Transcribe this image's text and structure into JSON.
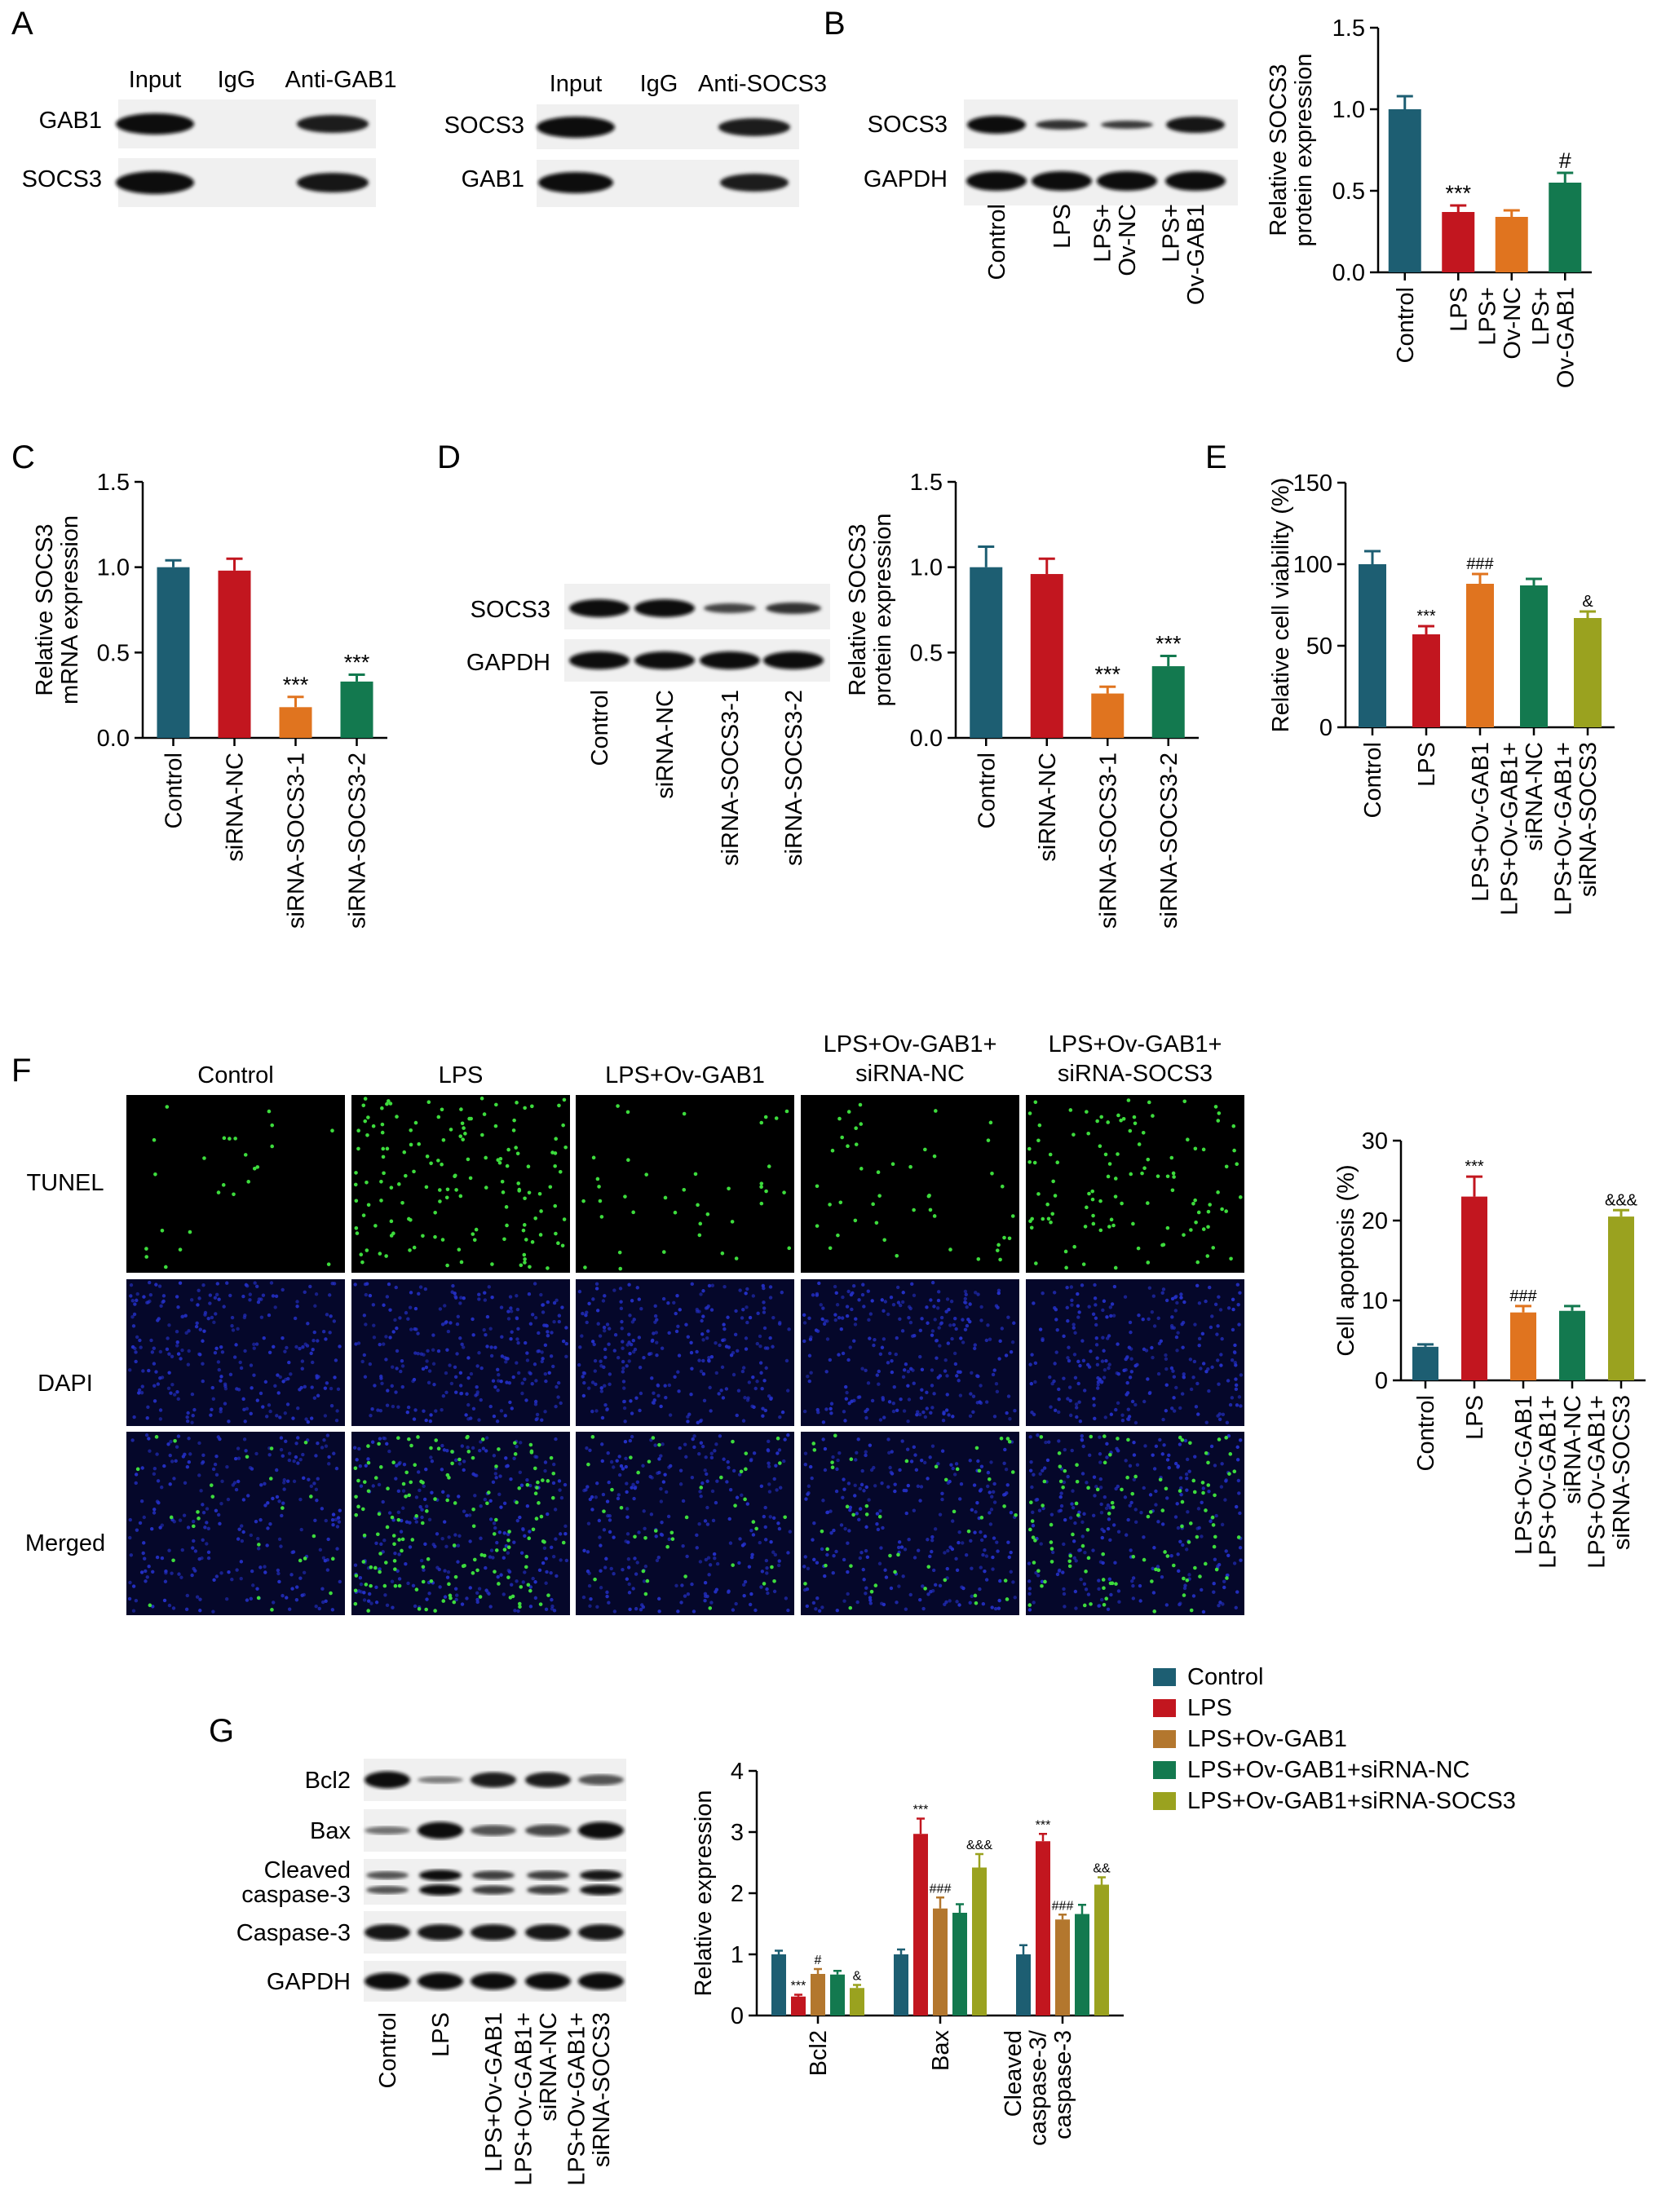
{
  "panels": {
    "A": {
      "letter": "A",
      "blot1": {
        "cols": [
          "Input",
          "IgG",
          "Anti-GAB1"
        ],
        "rows": [
          "GAB1",
          "SOCS3"
        ]
      },
      "blot2": {
        "cols": [
          "Input",
          "IgG",
          "Anti-SOCS3"
        ],
        "rows": [
          "SOCS3",
          "GAB1"
        ]
      }
    },
    "B": {
      "letter": "B",
      "blot_rows": [
        "SOCS3",
        "GAPDH"
      ]
    },
    "C": {
      "letter": "C"
    },
    "D": {
      "letter": "D",
      "blot_rows": [
        "SOCS3",
        "GAPDH"
      ]
    },
    "E": {
      "letter": "E"
    },
    "F": {
      "letter": "F",
      "groups": [
        "Control",
        "LPS",
        "LPS+Ov-GAB1",
        "LPS+Ov-GAB1+\nsiRNA-NC",
        "LPS+Ov-GAB1+\nsiRNA-SOCS3"
      ],
      "rows": [
        "TUNEL",
        "DAPI",
        "Merged"
      ]
    },
    "G": {
      "letter": "G",
      "blot_rows": [
        "Bcl2",
        "Bax",
        "Cleaved\ncaspase-3",
        "Caspase-3",
        "GAPDH"
      ]
    }
  },
  "colors": {
    "teal": "#1d5e72",
    "red": "#c2161f",
    "orange": "#e0741f",
    "green": "#13794f",
    "olive": "#9aa21f",
    "brown": "#b3772e"
  },
  "chart_data": [
    {
      "id": "B",
      "type": "bar",
      "categories": [
        "Control",
        "LPS",
        "LPS+\nOv-NC",
        "LPS+\nOv-GAB1"
      ],
      "values": [
        1.0,
        0.37,
        0.34,
        0.55
      ],
      "errors": [
        0.08,
        0.04,
        0.04,
        0.06
      ],
      "colors": [
        "teal",
        "red",
        "orange",
        "green"
      ],
      "annotations": [
        "",
        "***",
        "",
        "#"
      ],
      "ylabel": "Relative SOCS3\nprotein expression",
      "ylim": [
        0,
        1.5
      ],
      "yticks": [
        0.0,
        0.5,
        1.0,
        1.5
      ]
    },
    {
      "id": "C",
      "type": "bar",
      "categories": [
        "Control",
        "siRNA-NC",
        "siRNA-SOCS3-1",
        "siRNA-SOCS3-2"
      ],
      "values": [
        1.0,
        0.98,
        0.18,
        0.33
      ],
      "errors": [
        0.04,
        0.07,
        0.06,
        0.04
      ],
      "colors": [
        "teal",
        "red",
        "orange",
        "green"
      ],
      "annotations": [
        "",
        "",
        "***",
        "***"
      ],
      "ylabel": "Relative SOCS3\nmRNA expression",
      "ylim": [
        0,
        1.5
      ],
      "yticks": [
        0.0,
        0.5,
        1.0,
        1.5
      ]
    },
    {
      "id": "D",
      "type": "bar",
      "categories": [
        "Control",
        "siRNA-NC",
        "siRNA-SOCS3-1",
        "siRNA-SOCS3-2"
      ],
      "values": [
        1.0,
        0.96,
        0.26,
        0.42
      ],
      "errors": [
        0.12,
        0.09,
        0.04,
        0.06
      ],
      "colors": [
        "teal",
        "red",
        "orange",
        "green"
      ],
      "annotations": [
        "",
        "",
        "***",
        "***"
      ],
      "ylabel": "Relative SOCS3\nprotein expression",
      "ylim": [
        0,
        1.5
      ],
      "yticks": [
        0.0,
        0.5,
        1.0,
        1.5
      ]
    },
    {
      "id": "E",
      "type": "bar",
      "categories": [
        "Control",
        "LPS",
        "LPS+Ov-GAB1",
        "LPS+Ov-GAB1+\nsiRNA-NC",
        "LPS+Ov-GAB1+\nsiRNA-SOCS3"
      ],
      "values": [
        100,
        57,
        88,
        87,
        67
      ],
      "errors": [
        8,
        5,
        6,
        4,
        4
      ],
      "colors": [
        "teal",
        "red",
        "orange",
        "green",
        "olive"
      ],
      "annotations": [
        "",
        "***",
        "###",
        "",
        "&"
      ],
      "ylabel": "Relative cell viability (%)",
      "ylim": [
        0,
        150
      ],
      "yticks": [
        0,
        50,
        100,
        150
      ]
    },
    {
      "id": "F",
      "type": "bar",
      "categories": [
        "Control",
        "LPS",
        "LPS+Ov-GAB1",
        "LPS+Ov-GAB1+\nsiRNA-NC",
        "LPS+Ov-GAB1+\nsiRNA-SOCS3"
      ],
      "values": [
        4.2,
        23.0,
        8.5,
        8.7,
        20.5
      ],
      "errors": [
        0.3,
        2.5,
        0.8,
        0.6,
        0.8
      ],
      "colors": [
        "teal",
        "red",
        "orange",
        "green",
        "olive"
      ],
      "annotations": [
        "",
        "***",
        "###",
        "",
        "&&&"
      ],
      "ylabel": "Cell apoptosis (%)",
      "ylim": [
        0,
        30
      ],
      "yticks": [
        0,
        10,
        20,
        30
      ]
    },
    {
      "id": "G",
      "type": "bar",
      "categories": [
        "Bcl2",
        "Bax",
        "Cleaved\ncaspase-3/\ncaspase-3"
      ],
      "series": [
        {
          "name": "Control",
          "color": "teal",
          "values": [
            1.0,
            1.0,
            1.0
          ],
          "errors": [
            0.06,
            0.08,
            0.15
          ],
          "annotations": [
            "",
            "",
            ""
          ]
        },
        {
          "name": "LPS",
          "color": "red",
          "values": [
            0.31,
            2.97,
            2.85
          ],
          "errors": [
            0.03,
            0.25,
            0.12
          ],
          "annotations": [
            "***",
            "***",
            "***"
          ]
        },
        {
          "name": "LPS+Ov-GAB1",
          "color": "brown",
          "values": [
            0.68,
            1.75,
            1.57
          ],
          "errors": [
            0.08,
            0.18,
            0.08
          ],
          "annotations": [
            "#",
            "###",
            "###"
          ]
        },
        {
          "name": "LPS+Ov-GAB1+siRNA-NC",
          "color": "green",
          "values": [
            0.67,
            1.68,
            1.66
          ],
          "errors": [
            0.06,
            0.14,
            0.15
          ],
          "annotations": [
            "",
            "",
            ""
          ]
        },
        {
          "name": "LPS+Ov-GAB1+siRNA-SOCS3",
          "color": "olive",
          "values": [
            0.45,
            2.42,
            2.14
          ],
          "errors": [
            0.05,
            0.22,
            0.12
          ],
          "annotations": [
            "&",
            "&&&",
            "&&"
          ]
        }
      ],
      "ylabel": "Relative expression",
      "ylim": [
        0,
        4
      ],
      "yticks": [
        0,
        1,
        2,
        3,
        4
      ],
      "blot_lanes": [
        "Control",
        "LPS",
        "LPS+Ov-GAB1",
        "LPS+Ov-GAB1+\nsiRNA-NC",
        "LPS+Ov-GAB1+\nsiRNA-SOCS3"
      ]
    }
  ]
}
